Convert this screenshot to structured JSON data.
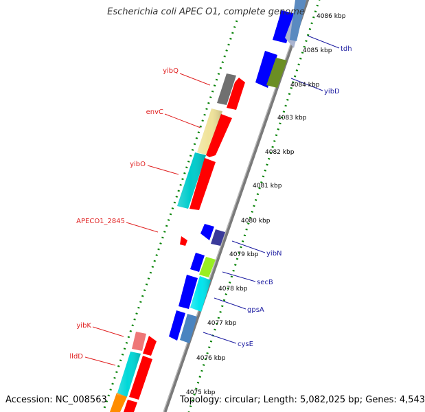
{
  "title": "Escherichia coli APEC O1, complete genome",
  "footer": {
    "accession": "Accession: NC_008563",
    "topology": "Topology: circular; Length: 5,082,025 bp; Genes: 4,543"
  },
  "ticks": [
    "4086 kbp",
    "4085 kbp",
    "4084 kbp",
    "4083 kbp",
    "4082 kbp",
    "4081 kbp",
    "4080 kbp",
    "4079 kbp",
    "4078 kbp",
    "4077 kbp",
    "4076 kbp",
    "4075 kbp"
  ],
  "left_labels": [
    "yibQ",
    "envC",
    "yibO",
    "APECO1_2845",
    "yibK",
    "lldD"
  ],
  "right_labels": [
    "tdh",
    "yibD",
    "yibN",
    "secB",
    "gpsA",
    "cysE"
  ],
  "colors": {
    "forward_label": "#e02020",
    "reverse_label": "#1a1aa0",
    "cds_forward": "#ff0000",
    "cds_reverse": "#0000ff",
    "backbone": "#808080",
    "dotted_ring": "#008000"
  }
}
